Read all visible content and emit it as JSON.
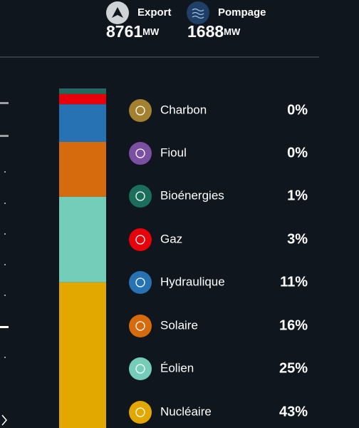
{
  "header": {
    "items": [
      {
        "label": "Export",
        "value": 8761,
        "unit": "MW"
      },
      {
        "label": "Pompage",
        "value": 1688,
        "unit": "MW"
      }
    ]
  },
  "chart_data": {
    "type": "bar",
    "stacked": true,
    "series": [
      {
        "name": "Charbon",
        "color": "#a3812f",
        "values": [
          0
        ],
        "value_labels": [
          "0%"
        ]
      },
      {
        "name": "Fioul",
        "color": "#7b4fa1",
        "values": [
          0
        ],
        "value_labels": [
          "0%"
        ]
      },
      {
        "name": "Bioénergies",
        "color": "#1b6e5b",
        "values": [
          1
        ],
        "value_labels": [
          "1%"
        ]
      },
      {
        "name": "Gaz",
        "color": "#e8000b",
        "values": [
          3
        ],
        "value_labels": [
          "3%"
        ]
      },
      {
        "name": "Hydraulique",
        "color": "#2772b2",
        "values": [
          11
        ],
        "value_labels": [
          "11%"
        ]
      },
      {
        "name": "Solaire",
        "color": "#d66b0d",
        "values": [
          16
        ],
        "value_labels": [
          "16%"
        ]
      },
      {
        "name": "Éolien",
        "color": "#74cdb9",
        "values": [
          25
        ],
        "value_labels": [
          "25%"
        ]
      },
      {
        "name": "Nucléaire",
        "color": "#e2a800",
        "values": [
          43
        ],
        "value_labels": [
          "43%"
        ]
      }
    ]
  }
}
